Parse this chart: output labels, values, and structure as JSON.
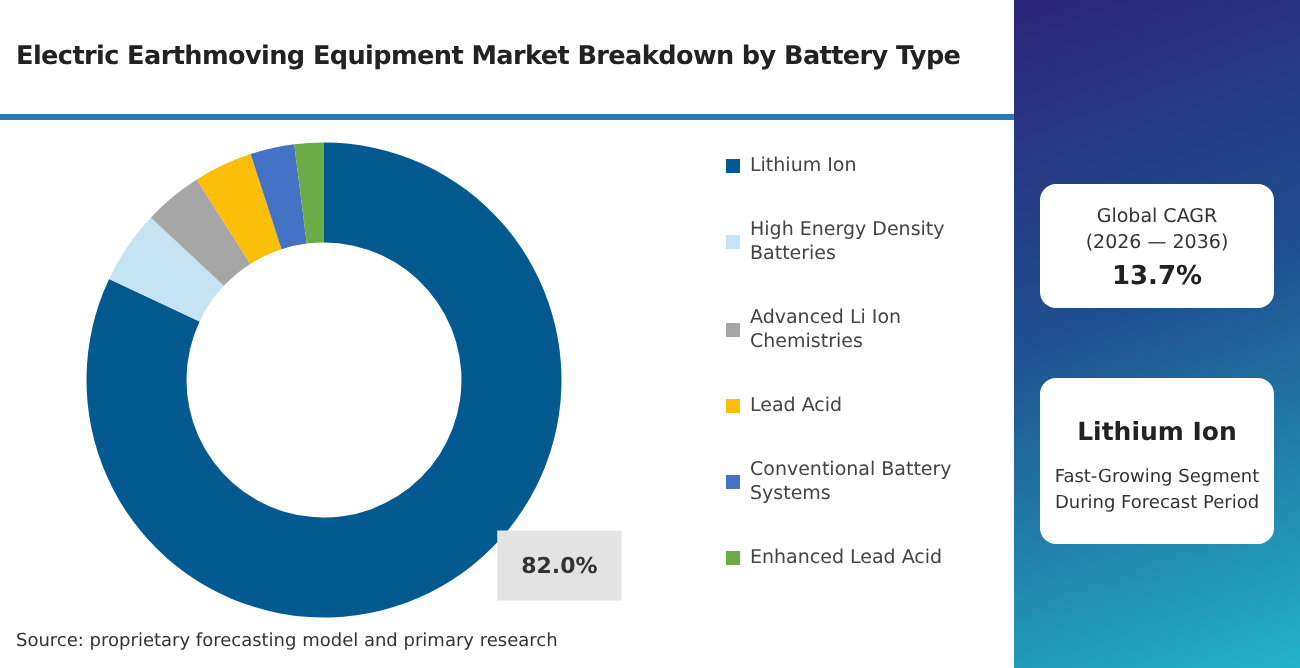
{
  "chart_data": [
    {
      "type": "donut",
      "title": "Electric Earthmoving Equipment Market Breakdown by Battery Type",
      "categories": [
        "Lithium Ion",
        "High Energy Density Batteries",
        "Advanced Li Ion Chemistries",
        "Lead Acid",
        "Conventional Battery Systems",
        "Enhanced Lead Acid"
      ],
      "values": [
        82.0,
        5,
        4,
        4,
        3,
        2
      ],
      "colors": [
        "#035a90",
        "#c5e3f3",
        "#a6a6a6",
        "#fbbf08",
        "#4472c4",
        "#6aac46"
      ],
      "value_labels": [
        "82.0%",
        null,
        null,
        null,
        null,
        null
      ],
      "legend": "right",
      "annotations": [
        "Source: proprietary forecasting model and primary research"
      ]
    },
    {
      "type": "other",
      "subtitle": "Global CAGR\n(2026 — 2036)",
      "title": "13.7%"
    },
    {
      "type": "other",
      "title": "Lithium Ion",
      "subtitle": "Fast-Growing Segment During Forecast Period"
    }
  ]
}
